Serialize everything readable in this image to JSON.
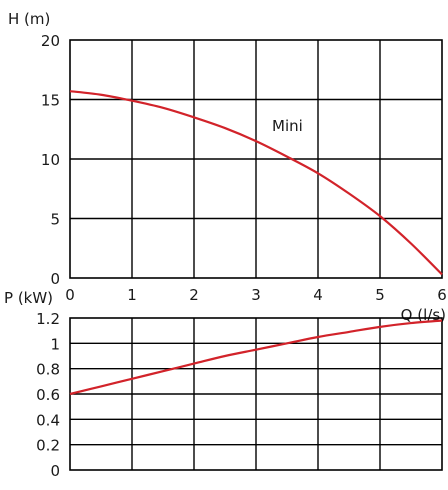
{
  "chart_data": [
    {
      "type": "line",
      "title": "",
      "ylabel": "H (m)",
      "xlabel": "Q (l/s)",
      "xlim": [
        0,
        6
      ],
      "ylim": [
        0,
        20
      ],
      "x_ticks": [
        "0",
        "1",
        "2",
        "3",
        "4",
        "5",
        "6"
      ],
      "y_ticks": [
        "0",
        "5",
        "10",
        "15",
        "20"
      ],
      "grid": true,
      "series": [
        {
          "name": "Mini",
          "color": "#d2232a",
          "x": [
            0,
            0.5,
            1,
            1.5,
            2,
            2.5,
            3,
            3.5,
            4,
            4.5,
            5,
            5.5,
            6
          ],
          "y": [
            15.7,
            15.4,
            14.9,
            14.3,
            13.5,
            12.6,
            11.5,
            10.2,
            8.8,
            7.1,
            5.2,
            2.9,
            0.3
          ]
        }
      ]
    },
    {
      "type": "line",
      "title": "",
      "ylabel": "P (kW)",
      "xlabel": "",
      "xlim": [
        0,
        6
      ],
      "ylim": [
        0,
        1.2
      ],
      "y_ticks": [
        "0",
        "0.2",
        "0.4",
        "0.6",
        "0.8",
        "1",
        "1.2"
      ],
      "grid": true,
      "series": [
        {
          "color": "#d2232a",
          "x": [
            0,
            0.5,
            1,
            1.5,
            2,
            2.5,
            3,
            3.5,
            4,
            4.5,
            5,
            5.5,
            6
          ],
          "y": [
            0.6,
            0.66,
            0.72,
            0.78,
            0.84,
            0.9,
            0.95,
            1.0,
            1.05,
            1.09,
            1.13,
            1.16,
            1.18
          ]
        }
      ]
    }
  ]
}
